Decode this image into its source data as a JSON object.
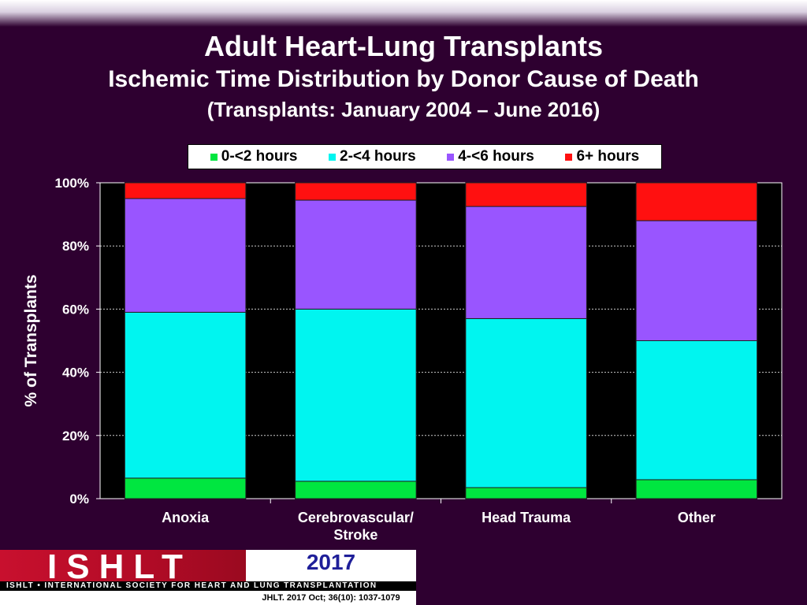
{
  "header": {
    "title": "Adult Heart-Lung Transplants",
    "subtitle": "Ischemic Time Distribution by Donor Cause of Death",
    "date_range": "(Transplants: January 2004 – June 2016)"
  },
  "footer": {
    "logo_text": "ISHLT",
    "society_name": "ISHLT • INTERNATIONAL SOCIETY FOR HEART AND LUNG TRANSPLANTATION",
    "year": "2017",
    "citation": "JHLT. 2017 Oct; 36(10): 1037-1079"
  },
  "chart_data": {
    "type": "bar",
    "stacked": true,
    "categories": [
      "Anoxia",
      "Cerebrovascular/\nStroke",
      "Head Trauma",
      "Other"
    ],
    "category_lines": [
      [
        "Anoxia"
      ],
      [
        "Cerebrovascular/",
        "Stroke"
      ],
      [
        "Head Trauma"
      ],
      [
        "Other"
      ]
    ],
    "series": [
      {
        "name": "0-<2 hours",
        "color": "#00e640",
        "values": [
          6.5,
          5.5,
          3.5,
          6.0
        ]
      },
      {
        "name": "2-<4 hours",
        "color": "#00f5f0",
        "values": [
          52.5,
          54.5,
          53.5,
          44.0
        ]
      },
      {
        "name": "4-<6 hours",
        "color": "#9955ff",
        "values": [
          36.0,
          34.5,
          35.5,
          38.0
        ]
      },
      {
        "name": "6+ hours",
        "color": "#ff1010",
        "values": [
          5.0,
          5.5,
          7.5,
          12.0
        ]
      }
    ],
    "ylabel": "% of Transplants",
    "xlabel": "",
    "ylim": [
      0,
      100
    ],
    "yticks": [
      "0%",
      "20%",
      "40%",
      "60%",
      "80%",
      "100%"
    ],
    "grid": true,
    "legend_position": "top",
    "plot_background": "#000000"
  }
}
